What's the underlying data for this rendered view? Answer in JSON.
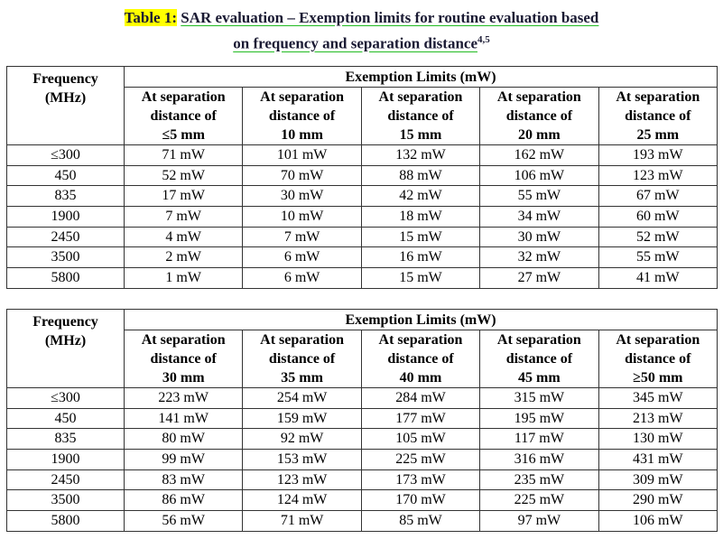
{
  "title": {
    "label": "Table 1:",
    "line1": "SAR evaluation – Exemption limits for routine evaluation based",
    "line2": "on frequency and separation distance",
    "superscript": "4,5"
  },
  "tables": [
    {
      "frequency_header": [
        "Frequency",
        "(MHz)"
      ],
      "group_header": "Exemption Limits (mW)",
      "columns": [
        [
          "At separation",
          "distance of",
          "≤5 mm"
        ],
        [
          "At separation",
          "distance of",
          "10 mm"
        ],
        [
          "At separation",
          "distance of",
          "15 mm"
        ],
        [
          "At separation",
          "distance of",
          "20 mm"
        ],
        [
          "At separation",
          "distance of",
          "25 mm"
        ]
      ],
      "rows": [
        [
          "≤300",
          "71 mW",
          "101 mW",
          "132 mW",
          "162 mW",
          "193 mW"
        ],
        [
          "450",
          "52 mW",
          "70 mW",
          "88 mW",
          "106 mW",
          "123 mW"
        ],
        [
          "835",
          "17 mW",
          "30 mW",
          "42 mW",
          "55 mW",
          "67 mW"
        ],
        [
          "1900",
          "7 mW",
          "10 mW",
          "18 mW",
          "34 mW",
          "60 mW"
        ],
        [
          "2450",
          "4 mW",
          "7 mW",
          "15 mW",
          "30 mW",
          "52 mW"
        ],
        [
          "3500",
          "2 mW",
          "6 mW",
          "16 mW",
          "32 mW",
          "55 mW"
        ],
        [
          "5800",
          "1 mW",
          "6 mW",
          "15 mW",
          "27 mW",
          "41 mW"
        ]
      ]
    },
    {
      "frequency_header": [
        "Frequency",
        "(MHz)"
      ],
      "group_header": "Exemption Limits (mW)",
      "columns": [
        [
          "At separation",
          "distance of",
          "30 mm"
        ],
        [
          "At separation",
          "distance of",
          "35 mm"
        ],
        [
          "At separation",
          "distance of",
          "40 mm"
        ],
        [
          "At separation",
          "distance of",
          "45 mm"
        ],
        [
          "At separation",
          "distance of",
          "≥50 mm"
        ]
      ],
      "rows": [
        [
          "≤300",
          "223 mW",
          "254 mW",
          "284 mW",
          "315 mW",
          "345 mW"
        ],
        [
          "450",
          "141 mW",
          "159 mW",
          "177 mW",
          "195 mW",
          "213 mW"
        ],
        [
          "835",
          "80 mW",
          "92 mW",
          "105 mW",
          "117 mW",
          "130 mW"
        ],
        [
          "1900",
          "99 mW",
          "153 mW",
          "225 mW",
          "316 mW",
          "431 mW"
        ],
        [
          "2450",
          "83 mW",
          "123 mW",
          "173 mW",
          "235 mW",
          "309 mW"
        ],
        [
          "3500",
          "86 mW",
          "124 mW",
          "170 mW",
          "225 mW",
          "290 mW"
        ],
        [
          "5800",
          "56 mW",
          "71 mW",
          "85 mW",
          "97 mW",
          "106 mW"
        ]
      ]
    }
  ]
}
